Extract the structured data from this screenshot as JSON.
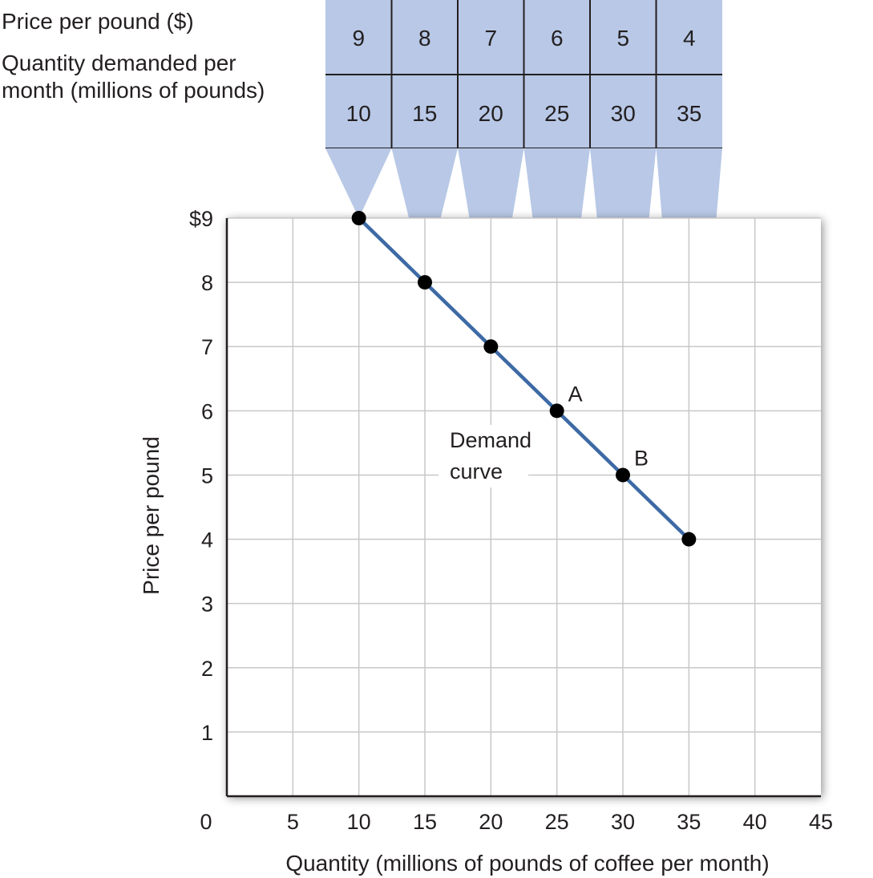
{
  "table": {
    "price_label": "Price per pound ($)",
    "quantity_label_line1": "Quantity demanded per",
    "quantity_label_line2": "month (millions of pounds)",
    "prices": [
      "9",
      "8",
      "7",
      "6",
      "5",
      "4"
    ],
    "quantities": [
      "10",
      "15",
      "20",
      "25",
      "30",
      "35"
    ]
  },
  "chart_data": {
    "type": "line",
    "title": "",
    "xlabel": "Quantity (millions of pounds of coffee per month)",
    "ylabel": "Price per pound",
    "xlim": [
      0,
      45
    ],
    "ylim": [
      0,
      9
    ],
    "x_ticks": [
      "0",
      "5",
      "10",
      "15",
      "20",
      "25",
      "30",
      "35",
      "40",
      "45"
    ],
    "y_ticks": [
      "1",
      "2",
      "3",
      "4",
      "5",
      "6",
      "7",
      "8",
      "$9"
    ],
    "grid": true,
    "series": [
      {
        "name": "Demand curve",
        "x": [
          10,
          15,
          20,
          25,
          30,
          35
        ],
        "y": [
          9,
          8,
          7,
          6,
          5,
          4
        ]
      }
    ],
    "annotations": [
      {
        "text": "A",
        "x": 25,
        "y": 6
      },
      {
        "text": "B",
        "x": 30,
        "y": 5
      }
    ],
    "curve_label_line1": "Demand",
    "curve_label_line2": "curve"
  },
  "colors": {
    "line": "#3d6aa5",
    "table_fill": "#b8c8e6",
    "grid": "#c8c8c8",
    "text": "#231f20"
  }
}
